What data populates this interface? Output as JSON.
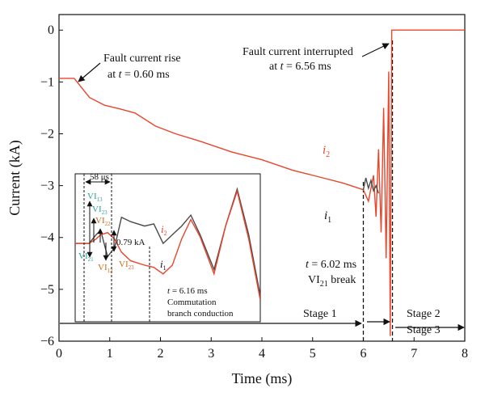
{
  "chart_data": {
    "type": "line",
    "xlabel": "Time (ms)",
    "ylabel": "Current (kA)",
    "xlim": [
      0,
      8
    ],
    "ylim": [
      -6,
      0.3
    ],
    "x_ticks": [
      "0",
      "1",
      "2",
      "3",
      "4",
      "5",
      "6",
      "7",
      "8"
    ],
    "y_ticks": [
      "0",
      "−1",
      "−2",
      "−3",
      "−4",
      "−5",
      "−6"
    ],
    "colors": {
      "i2": "#e8452c",
      "i1": "#4a4a4a",
      "teal": "#2aa198",
      "orange": "#cc6a1a"
    },
    "series": [
      {
        "name": "i2",
        "name_main": "i",
        "sub": "2",
        "color": "#e8452c",
        "x": [
          0,
          0.3,
          0.6,
          0.9,
          1.2,
          1.5,
          1.9,
          2.3,
          2.8,
          3.4,
          4.0,
          4.6,
          5.2,
          5.6,
          6.0,
          6.1,
          6.2,
          6.25,
          6.3,
          6.35,
          6.4,
          6.45,
          6.5,
          6.53,
          6.56,
          7.0,
          8.0
        ],
        "y": [
          -0.93,
          -0.93,
          -1.3,
          -1.45,
          -1.52,
          -1.6,
          -1.85,
          -2.0,
          -2.15,
          -2.35,
          -2.5,
          -2.7,
          -2.85,
          -2.95,
          -3.08,
          -3.3,
          -2.8,
          -3.6,
          -2.3,
          -3.9,
          -1.5,
          -4.4,
          -0.8,
          -5.9,
          0,
          0,
          0
        ]
      },
      {
        "name": "i1",
        "name_main": "i",
        "sub": "1",
        "color": "#4a4a4a",
        "x": [
          6.0,
          6.05,
          6.1,
          6.15,
          6.2,
          6.25,
          6.3
        ],
        "y": [
          -3.08,
          -2.85,
          -3.05,
          -2.9,
          -3.1,
          -3.0,
          -3.15
        ]
      }
    ],
    "annotations": [
      {
        "id": "rise",
        "line1": "Fault current rise",
        "line2_pre": "at ",
        "line2_var": "t",
        "line2_post": " = 0.60 ms"
      },
      {
        "id": "interrupt",
        "line1": "Fault current interrupted",
        "line2_pre": "at ",
        "line2_var": "t",
        "line2_post": " = 6.56 ms"
      },
      {
        "id": "break",
        "line1_var": "t",
        "line1_post": " = 6.02 ms",
        "line2": "VI",
        "line2_sub": "21",
        "line2_post": " break"
      },
      {
        "id": "stage1",
        "text": "Stage 1"
      },
      {
        "id": "stage2",
        "text": "Stage 2"
      },
      {
        "id": "stage3",
        "text": "Stage 3"
      }
    ],
    "inset": {
      "xlim": [
        0,
        4
      ],
      "ylim": [
        -6,
        -2.6
      ],
      "i1": {
        "x": [
          0,
          0.3,
          0.45,
          0.55,
          0.7,
          0.85,
          1.0,
          1.2,
          1.5,
          1.7,
          1.9,
          2.1,
          2.3,
          2.5,
          2.7,
          3.0,
          3.25,
          3.5,
          3.75,
          4.0
        ],
        "y": [
          -4.2,
          -4.2,
          -4.0,
          -3.9,
          -4.5,
          -4.3,
          -3.6,
          -3.7,
          -3.8,
          -3.75,
          -4.2,
          -4.0,
          -3.8,
          -3.55,
          -4.0,
          -4.8,
          -3.8,
          -2.95,
          -4.0,
          -5.4
        ]
      },
      "i2": {
        "x": [
          0,
          0.3,
          0.45,
          0.55,
          0.7,
          0.85,
          1.0,
          1.2,
          1.5,
          1.7,
          1.9,
          2.1,
          2.3,
          2.5,
          2.7,
          3.0,
          3.25,
          3.5,
          3.75,
          4.0
        ],
        "y": [
          -4.2,
          -4.2,
          -4.1,
          -4.0,
          -3.95,
          -4.1,
          -4.4,
          -4.6,
          -4.7,
          -4.75,
          -4.9,
          -4.7,
          -4.1,
          -3.65,
          -4.05,
          -4.9,
          -3.8,
          -3.0,
          -4.1,
          -5.5
        ]
      },
      "labels": {
        "dt": "58 μs",
        "delta": "0.79 kA",
        "vi13": {
          "main": "VI",
          "sub": "13"
        },
        "vi23a": {
          "main": "VI",
          "sub": "23"
        },
        "vi22": {
          "main": "VI",
          "sub": "22"
        },
        "vi21": {
          "main": "VI",
          "sub": "21"
        },
        "vi12": {
          "main": "VI",
          "sub": "12"
        },
        "vi23b": {
          "main": "VI",
          "sub": "23"
        },
        "i2": {
          "main": "i",
          "sub": "2"
        },
        "i1": {
          "main": "i",
          "sub": "1"
        },
        "comm_pre": "t",
        "comm_post": " = 6.16 ms",
        "comm2": "Commutation",
        "comm3": "branch conduction"
      }
    }
  }
}
